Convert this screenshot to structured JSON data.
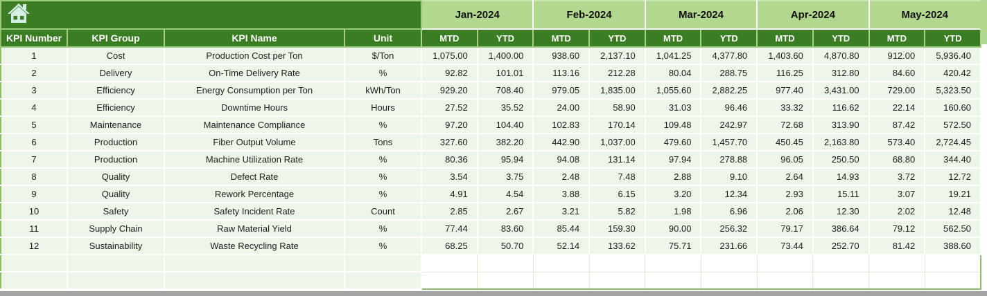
{
  "icons": {
    "home": "home"
  },
  "colors": {
    "header_green": "#3B7D23",
    "month_band_green": "#B2D78F",
    "row_green": "#EDF6E8",
    "grid_white": "#FFFFFF",
    "outer_border_green": "#8CBC68",
    "icon_pale": "#D7EEE4",
    "bottom_bar_gray": "#A3A3A3"
  },
  "table": {
    "column_headers": [
      "KPI Number",
      "KPI Group",
      "KPI Name",
      "Unit"
    ],
    "month_headers": [
      "Jan-2024",
      "Feb-2024",
      "Mar-2024",
      "Apr-2024",
      "May-2024"
    ],
    "sub_headers": [
      "MTD",
      "YTD"
    ],
    "rows": [
      {
        "number": "1",
        "group": "Cost",
        "name": "Production Cost per Ton",
        "unit": "$/Ton",
        "values": [
          "1,075.00",
          "1,400.00",
          "938.60",
          "2,137.10",
          "1,041.25",
          "4,377.80",
          "1,403.60",
          "4,870.80",
          "912.00",
          "5,936.40"
        ]
      },
      {
        "number": "2",
        "group": "Delivery",
        "name": "On-Time Delivery Rate",
        "unit": "%",
        "values": [
          "92.82",
          "101.01",
          "113.16",
          "212.28",
          "80.04",
          "288.75",
          "116.25",
          "312.80",
          "84.60",
          "420.42"
        ]
      },
      {
        "number": "3",
        "group": "Efficiency",
        "name": "Energy Consumption per Ton",
        "unit": "kWh/Ton",
        "values": [
          "929.20",
          "708.40",
          "979.05",
          "1,835.00",
          "1,055.60",
          "2,882.25",
          "977.40",
          "3,431.00",
          "729.00",
          "5,323.50"
        ]
      },
      {
        "number": "4",
        "group": "Efficiency",
        "name": "Downtime Hours",
        "unit": "Hours",
        "values": [
          "27.52",
          "35.52",
          "24.00",
          "58.90",
          "31.03",
          "96.46",
          "33.32",
          "116.62",
          "22.14",
          "160.60"
        ]
      },
      {
        "number": "5",
        "group": "Maintenance",
        "name": "Maintenance Compliance",
        "unit": "%",
        "values": [
          "97.20",
          "104.40",
          "102.83",
          "170.14",
          "109.48",
          "242.97",
          "72.68",
          "313.90",
          "87.42",
          "572.50"
        ]
      },
      {
        "number": "6",
        "group": "Production",
        "name": "Fiber Output Volume",
        "unit": "Tons",
        "values": [
          "327.60",
          "382.20",
          "442.90",
          "1,037.00",
          "479.60",
          "1,457.70",
          "450.45",
          "2,163.80",
          "573.40",
          "2,724.45"
        ]
      },
      {
        "number": "7",
        "group": "Production",
        "name": "Machine Utilization Rate",
        "unit": "%",
        "values": [
          "80.36",
          "95.94",
          "94.08",
          "131.14",
          "97.94",
          "278.88",
          "96.05",
          "250.50",
          "68.80",
          "344.40"
        ]
      },
      {
        "number": "8",
        "group": "Quality",
        "name": "Defect Rate",
        "unit": "%",
        "values": [
          "3.54",
          "3.75",
          "2.48",
          "7.48",
          "2.88",
          "9.10",
          "2.64",
          "14.93",
          "3.72",
          "12.72"
        ]
      },
      {
        "number": "9",
        "group": "Quality",
        "name": "Rework Percentage",
        "unit": "%",
        "values": [
          "4.91",
          "4.54",
          "3.88",
          "6.15",
          "3.20",
          "12.34",
          "2.93",
          "15.11",
          "3.07",
          "19.21"
        ]
      },
      {
        "number": "10",
        "group": "Safety",
        "name": "Safety Incident Rate",
        "unit": "Count",
        "values": [
          "2.85",
          "2.67",
          "3.21",
          "5.82",
          "1.98",
          "6.96",
          "2.06",
          "12.30",
          "2.02",
          "12.48"
        ]
      },
      {
        "number": "11",
        "group": "Supply Chain",
        "name": "Raw Material Yield",
        "unit": "%",
        "values": [
          "77.44",
          "83.60",
          "85.44",
          "159.30",
          "90.00",
          "256.32",
          "79.17",
          "386.64",
          "79.12",
          "562.50"
        ]
      },
      {
        "number": "12",
        "group": "Sustainability",
        "name": "Waste Recycling Rate",
        "unit": "%",
        "values": [
          "68.25",
          "50.70",
          "52.14",
          "133.62",
          "75.71",
          "231.66",
          "73.44",
          "252.70",
          "81.42",
          "388.60"
        ]
      }
    ],
    "empty_row_count": 2
  }
}
